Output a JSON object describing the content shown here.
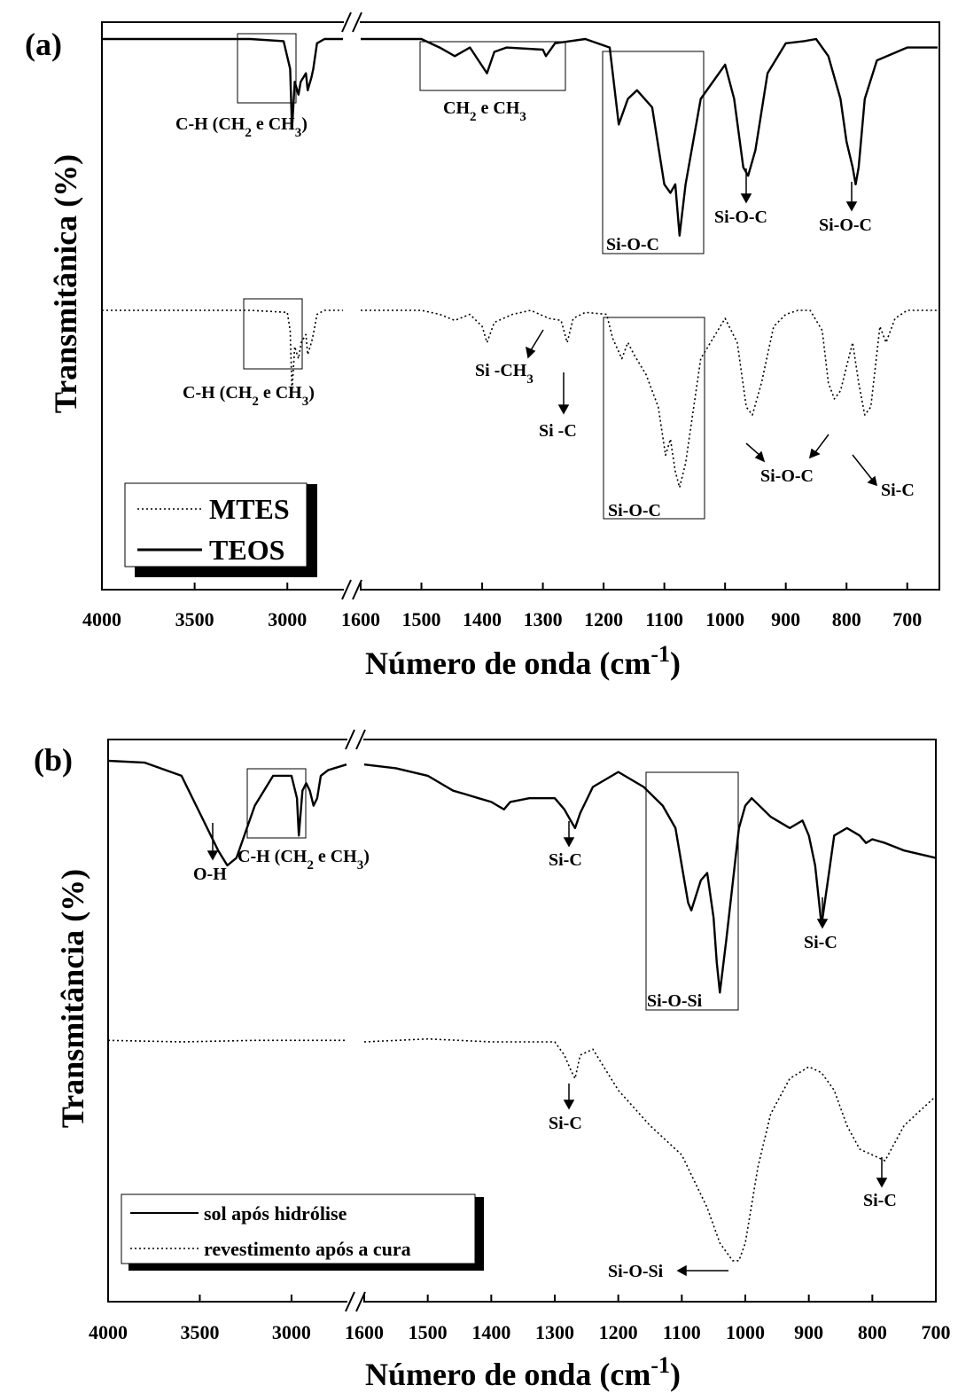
{
  "panels": [
    {
      "label": "(a)",
      "xlabel": "Número de onda (cm",
      "xlabel_sup": "-1",
      "xlabel_close": ")",
      "ylabel": "Transmitânica (%)",
      "left_ticks": [
        "4000",
        "3500",
        "3000"
      ],
      "right_ticks": [
        "1600",
        "1500",
        "1400",
        "1300",
        "1200",
        "1100",
        "1000",
        "900",
        "800",
        "700"
      ],
      "legend": [
        "MTES",
        "TEOS"
      ],
      "annotations": {
        "ch_top": "C-H (CH",
        "ch_top_sub2": "2",
        "ch_top_e": " e CH",
        "ch_top_sub3": "3",
        "ch_top_close": ")",
        "ch2ch3": "CH",
        "ch2ch3_sub2": "2",
        "ch2ch3_e": " e CH",
        "ch2ch3_sub3": "3",
        "sioc_box_top": "Si-O-C",
        "sioc_960": "Si-O-C",
        "sioc_785": "Si-O-C",
        "ch_mid": "C-H (CH",
        "ch_mid_sub2": "2",
        "ch_mid_e": " e CH",
        "ch_mid_sub3": "3",
        "ch_mid_close": ")",
        "sich3": "Si -CH",
        "sich3_sub": "3",
        "sic_1260": "Si -C",
        "sioc_box_mid": "Si-O-C",
        "sioc_mid_right": "Si-O-C",
        "sic_mid_right": "Si-C"
      }
    },
    {
      "label": "(b)",
      "xlabel": "Número de onda (cm",
      "xlabel_sup": "-1",
      "xlabel_close": ")",
      "ylabel": "Transmitância (%)",
      "left_ticks": [
        "4000",
        "3500",
        "3000"
      ],
      "right_ticks": [
        "1600",
        "1500",
        "1400",
        "1300",
        "1200",
        "1100",
        "1000",
        "900",
        "800",
        "700"
      ],
      "legend": [
        "sol após hidrólise",
        "revestimento após a cura"
      ],
      "annotations": {
        "oh": "O-H",
        "ch": "C-H (CH",
        "ch_sub2": "2",
        "ch_e": " e CH",
        "ch_sub3": "3",
        "ch_close": ")",
        "sic_1270_top": "Si-C",
        "sic_880_top": "Si-C",
        "siosi_box": "Si-O-Si",
        "sic_1270_bot": "Si-C",
        "sic_785_bot": "Si-C",
        "siosi_bot": "Si-O-Si"
      }
    }
  ],
  "chart_data": [
    {
      "type": "line",
      "title": "(a)",
      "xlabel": "Número de onda (cm-1)",
      "ylabel": "Transmitânica (%)",
      "x_axis": "broken axis: 4000–2700 and 1600–650 cm-1",
      "legend_position": "bottom-left",
      "series": [
        {
          "name": "TEOS",
          "style": "solid",
          "x": [
            4000,
            3600,
            3200,
            3020,
            2985,
            2975,
            2960,
            2940,
            2928,
            2900,
            2890,
            2870,
            2860,
            2840,
            2800,
            2700,
            1600,
            1500,
            1470,
            1445,
            1420,
            1392,
            1380,
            1360,
            1300,
            1295,
            1280,
            1230,
            1190,
            1175,
            1160,
            1145,
            1120,
            1100,
            1090,
            1082,
            1075,
            1065,
            1040,
            1000,
            985,
            970,
            962,
            950,
            930,
            900,
            870,
            850,
            830,
            810,
            800,
            790,
            785,
            780,
            770,
            750,
            700,
            650
          ],
          "y": [
            100,
            100,
            100,
            99.5,
            93,
            79,
            90,
            87,
            90,
            92,
            88,
            91,
            93,
            99,
            100,
            100,
            100,
            100,
            98,
            96,
            98,
            92,
            97,
            98,
            97.5,
            96,
            99,
            100,
            98,
            80,
            86,
            88,
            84,
            66,
            64,
            66,
            54,
            66,
            86,
            94,
            86,
            70,
            68,
            74,
            92,
            99,
            99.5,
            100,
            96,
            86,
            76,
            70,
            66,
            70,
            86,
            95,
            98,
            98
          ]
        },
        {
          "name": "MTES",
          "style": "dotted",
          "x": [
            4000,
            3600,
            3200,
            3000,
            2985,
            2975,
            2960,
            2940,
            2925,
            2900,
            2890,
            2870,
            2860,
            2840,
            2800,
            2700,
            1600,
            1500,
            1470,
            1445,
            1420,
            1400,
            1392,
            1380,
            1350,
            1320,
            1290,
            1270,
            1260,
            1250,
            1230,
            1195,
            1185,
            1170,
            1160,
            1150,
            1130,
            1110,
            1098,
            1090,
            1082,
            1075,
            1065,
            1040,
            1000,
            980,
            965,
            955,
            940,
            920,
            900,
            880,
            860,
            840,
            830,
            820,
            810,
            800,
            790,
            780,
            770,
            760,
            745,
            735,
            720,
            700,
            650
          ],
          "y": [
            100,
            100,
            100,
            99.5,
            95,
            80,
            91,
            88,
            92,
            94,
            89,
            92,
            94,
            99,
            100,
            100,
            100,
            100,
            99,
            97.5,
            99,
            96,
            92,
            97,
            99,
            100,
            98,
            97.5,
            92,
            98,
            99.5,
            99,
            93,
            88,
            92,
            89,
            84,
            76,
            64,
            68,
            60,
            56,
            62,
            88,
            98,
            92,
            76,
            74,
            82,
            96,
            99,
            100,
            100,
            95,
            82,
            78,
            80,
            86,
            92,
            82,
            74,
            76,
            96,
            92,
            98,
            100,
            100
          ]
        }
      ]
    },
    {
      "type": "line",
      "title": "(b)",
      "xlabel": "Número de onda (cm-1)",
      "ylabel": "Transmitância (%)",
      "x_axis": "broken axis: 4000–2700 and 1600–700 cm-1",
      "legend_position": "bottom-left",
      "series": [
        {
          "name": "sol após hidrólise",
          "style": "solid",
          "x": [
            4000,
            3800,
            3600,
            3500,
            3400,
            3350,
            3300,
            3200,
            3100,
            3000,
            2970,
            2960,
            2940,
            2920,
            2900,
            2880,
            2860,
            2840,
            2800,
            2700,
            1600,
            1550,
            1500,
            1460,
            1440,
            1420,
            1400,
            1390,
            1380,
            1370,
            1340,
            1300,
            1285,
            1275,
            1268,
            1260,
            1240,
            1200,
            1160,
            1130,
            1110,
            1100,
            1090,
            1085,
            1070,
            1060,
            1050,
            1045,
            1040,
            1030,
            1010,
            1000,
            990,
            960,
            930,
            910,
            900,
            890,
            880,
            870,
            860,
            840,
            820,
            810,
            800,
            780,
            750,
            700
          ],
          "y": [
            100,
            99.5,
            96,
            86,
            76,
            72,
            74,
            88,
            96,
            96,
            90,
            80,
            92,
            94,
            92,
            88,
            90,
            96,
            97.5,
            99,
            99,
            98,
            96,
            92,
            91,
            90,
            89,
            88,
            87,
            89,
            90,
            90,
            87,
            84,
            82,
            86,
            93,
            97,
            93,
            88,
            82,
            72,
            62,
            60,
            68,
            70,
            58,
            46,
            38,
            52,
            82,
            88,
            90,
            85,
            82,
            84,
            80,
            72,
            56,
            68,
            80,
            82,
            80,
            78,
            79,
            78,
            76,
            74
          ]
        },
        {
          "name": "revestimento após a cura",
          "style": "dotted",
          "x": [
            4000,
            3600,
            3200,
            2800,
            2700,
            1600,
            1500,
            1400,
            1300,
            1285,
            1275,
            1268,
            1260,
            1240,
            1200,
            1150,
            1100,
            1060,
            1040,
            1020,
            1010,
            1000,
            980,
            960,
            930,
            900,
            880,
            860,
            840,
            820,
            800,
            790,
            780,
            770,
            750,
            730,
            700
          ],
          "y": [
            99,
            98.5,
            99,
            99,
            99,
            98.5,
            99.5,
            98.5,
            98.5,
            94,
            89,
            86,
            94,
            96,
            82,
            70,
            60,
            42,
            30,
            24,
            24,
            30,
            56,
            74,
            86,
            90,
            88,
            82,
            70,
            62,
            60,
            59,
            58,
            62,
            70,
            74,
            80
          ]
        }
      ]
    }
  ]
}
